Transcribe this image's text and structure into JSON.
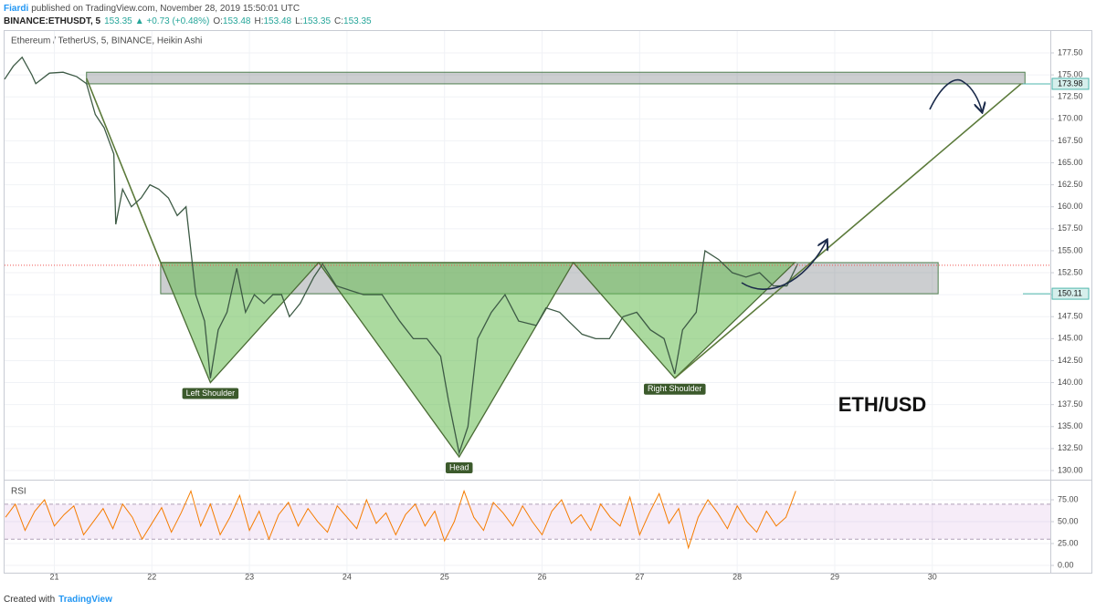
{
  "header": {
    "author": "Fiardi",
    "published": "published on TradingView.com, November 28, 2019 15:50:01 UTC",
    "symbol": "BINANCE:ETHUSDT, 5",
    "last": "153.35",
    "change": "▲ +0.73 (+0.48%)",
    "quote": [
      {
        "label": "O:",
        "value": "153.48"
      },
      {
        "label": "H:",
        "value": "153.48"
      },
      {
        "label": "L:",
        "value": "153.35"
      },
      {
        "label": "C:",
        "value": "153.35"
      }
    ]
  },
  "chart_data": [
    {
      "type": "line",
      "title": "Ethereum / TetherUS, 5, BINANCE, Heikin Ashi",
      "color": "#3d5a45",
      "x": [
        20.49,
        20.58,
        20.67,
        20.77,
        20.81,
        20.95,
        21.09,
        21.23,
        21.33,
        21.42,
        21.51,
        21.61,
        21.63,
        21.7,
        21.79,
        21.89,
        21.98,
        22.07,
        22.17,
        22.26,
        22.35,
        22.4,
        22.45,
        22.54,
        22.6,
        22.68,
        22.77,
        22.87,
        22.96,
        23.05,
        23.15,
        23.24,
        23.33,
        23.41,
        23.52,
        23.66,
        23.75,
        23.89,
        24.03,
        24.17,
        24.36,
        24.54,
        24.68,
        24.82,
        24.96,
        25.04,
        25.15,
        25.24,
        25.34,
        25.48,
        25.62,
        25.76,
        25.94,
        26.04,
        26.18,
        26.27,
        26.41,
        26.55,
        26.69,
        26.83,
        26.97,
        27.11,
        27.25,
        27.36,
        27.44,
        27.58,
        27.67,
        27.81,
        27.95,
        28.09,
        28.23,
        28.37,
        28.51,
        28.62
      ],
      "values": [
        174.5,
        176,
        177,
        175,
        174,
        175.2,
        175.3,
        174.8,
        174,
        170.5,
        169,
        166,
        158,
        162,
        160,
        161,
        162.5,
        162,
        161,
        159,
        160,
        155,
        150,
        147,
        140.5,
        146,
        148,
        153,
        148,
        150,
        149,
        150,
        150,
        147.5,
        149,
        152,
        153.5,
        151,
        150.5,
        150,
        150,
        147,
        145,
        145,
        143,
        138,
        132,
        135,
        145,
        148,
        150,
        147,
        146.5,
        148.5,
        148,
        147,
        145.5,
        145,
        145,
        147.5,
        148,
        146,
        145,
        141,
        146,
        148,
        155,
        154,
        152.5,
        152,
        152.5,
        151,
        151,
        153.5
      ],
      "xlim": [
        20.49,
        31.21
      ],
      "ylim": [
        128.96,
        179.99
      ],
      "xticks": [
        21,
        22,
        23,
        24,
        25,
        26,
        27,
        28,
        29,
        30
      ],
      "yticks": [
        {
          "value": 130,
          "label": "130.00"
        },
        {
          "value": 132.5,
          "label": "132.50"
        },
        {
          "value": 135,
          "label": "135.00"
        },
        {
          "value": 137.5,
          "label": "137.50"
        },
        {
          "value": 140,
          "label": "140.00"
        },
        {
          "value": 142.5,
          "label": "142.50"
        },
        {
          "value": 145,
          "label": "145.00"
        },
        {
          "value": 147.5,
          "label": "147.50"
        },
        {
          "value": 150,
          "label": "150.00"
        },
        {
          "value": 152.5,
          "label": "152.50"
        },
        {
          "value": 155,
          "label": "155.00"
        },
        {
          "value": 157.5,
          "label": "157.50"
        },
        {
          "value": 160,
          "label": "160.00"
        },
        {
          "value": 162.5,
          "label": "162.50"
        },
        {
          "value": 165,
          "label": "165.00"
        },
        {
          "value": 167.5,
          "label": "167.50"
        },
        {
          "value": 170,
          "label": "170.00"
        },
        {
          "value": 172.5,
          "label": "172.50"
        },
        {
          "value": 175,
          "label": "175.00"
        },
        {
          "value": 177.5,
          "label": "177.50"
        }
      ],
      "last": 153.35,
      "price_labels": [
        {
          "value": 173.98,
          "label": "173.98"
        },
        {
          "value": 150.11,
          "label": "150.11"
        }
      ],
      "zones": [
        {
          "from": 21.33,
          "to": 30.95,
          "low": 173.98,
          "high": 175.3
        },
        {
          "from": 22.09,
          "to": 30.06,
          "low": 150.11,
          "high": 153.65
        }
      ],
      "patterns": [
        {
          "label": "Left Shoulder",
          "points": [
            [
              22.09,
              153.65
            ],
            [
              22.6,
              140.0
            ],
            [
              23.71,
              153.65
            ]
          ]
        },
        {
          "label": "Head",
          "points": [
            [
              23.71,
              153.65
            ],
            [
              25.15,
              131.55
            ],
            [
              26.32,
              153.65
            ]
          ]
        },
        {
          "label": "Right Shoulder",
          "points": [
            [
              26.32,
              153.65
            ],
            [
              27.36,
              140.5
            ],
            [
              28.59,
              153.65
            ]
          ]
        }
      ],
      "lines": [
        {
          "points": [
            [
              21.33,
              174.6
            ],
            [
              22.09,
              153.65
            ]
          ]
        },
        {
          "points": [
            [
              27.36,
              140.5
            ],
            [
              30.91,
              173.98
            ]
          ]
        }
      ],
      "annotation": "ETH/USD"
    },
    {
      "type": "line",
      "title": "RSI",
      "color": "#f57c00",
      "x": [
        20.5,
        20.6,
        20.7,
        20.8,
        20.9,
        21.0,
        21.1,
        21.2,
        21.3,
        21.4,
        21.5,
        21.6,
        21.7,
        21.8,
        21.9,
        22.0,
        22.1,
        22.2,
        22.3,
        22.4,
        22.5,
        22.6,
        22.7,
        22.8,
        22.9,
        23.0,
        23.1,
        23.2,
        23.3,
        23.4,
        23.5,
        23.6,
        23.7,
        23.8,
        23.9,
        24.0,
        24.1,
        24.2,
        24.3,
        24.4,
        24.5,
        24.6,
        24.7,
        24.8,
        24.9,
        25.0,
        25.1,
        25.2,
        25.3,
        25.4,
        25.5,
        25.6,
        25.7,
        25.8,
        25.9,
        26.0,
        26.1,
        26.2,
        26.3,
        26.4,
        26.5,
        26.6,
        26.7,
        26.8,
        26.9,
        27.0,
        27.1,
        27.2,
        27.3,
        27.4,
        27.5,
        27.6,
        27.7,
        27.8,
        27.9,
        28.0,
        28.1,
        28.2,
        28.3,
        28.4,
        28.5,
        28.6
      ],
      "values": [
        55,
        70,
        40,
        62,
        75,
        45,
        58,
        68,
        35,
        50,
        65,
        42,
        70,
        55,
        30,
        48,
        66,
        38,
        60,
        85,
        45,
        70,
        35,
        55,
        80,
        40,
        62,
        30,
        58,
        72,
        45,
        65,
        50,
        38,
        68,
        55,
        42,
        75,
        48,
        60,
        35,
        58,
        70,
        45,
        62,
        28,
        50,
        85,
        55,
        40,
        72,
        60,
        45,
        68,
        50,
        35,
        62,
        75,
        48,
        58,
        40,
        70,
        55,
        45,
        78,
        35,
        60,
        82,
        48,
        65,
        20,
        55,
        75,
        60,
        42,
        68,
        50,
        38,
        62,
        45,
        55,
        85
      ],
      "xlim": [
        20.49,
        31.21
      ],
      "ylim": [
        -8.3,
        96.9
      ],
      "yticks": [
        {
          "value": 0,
          "label": "0.00"
        },
        {
          "value": 25,
          "label": "25.00"
        },
        {
          "value": 50,
          "label": "50.00"
        },
        {
          "value": 75,
          "label": "75.00"
        }
      ],
      "band": [
        30,
        70
      ]
    }
  ],
  "footer": {
    "created_with": "Created with",
    "brand": "TradingView"
  }
}
